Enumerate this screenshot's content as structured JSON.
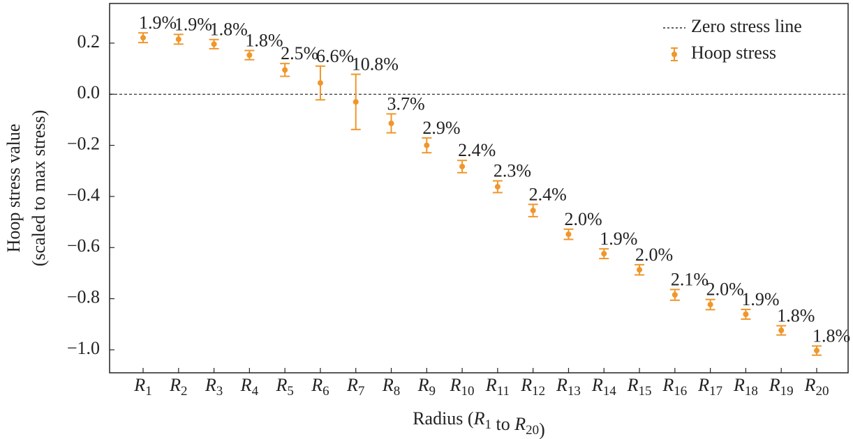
{
  "chart_data": {
    "type": "errorbar",
    "x_label": "Radius (R1 to R20)",
    "y_label": [
      "Hoop stress value",
      "(scaled to max stress)"
    ],
    "categories": [
      "R1",
      "R2",
      "R3",
      "R4",
      "R5",
      "R6",
      "R7",
      "R8",
      "R9",
      "R10",
      "R11",
      "R12",
      "R13",
      "R14",
      "R15",
      "R16",
      "R17",
      "R18",
      "R19",
      "R20"
    ],
    "series": [
      {
        "name": "Hoop stress",
        "color": "#f0962a",
        "values": [
          0.221,
          0.215,
          0.196,
          0.153,
          0.095,
          0.044,
          -0.03,
          -0.114,
          -0.2,
          -0.283,
          -0.362,
          -0.455,
          -0.548,
          -0.624,
          -0.687,
          -0.785,
          -0.823,
          -0.861,
          -0.924,
          -1.003
        ],
        "errors": [
          0.019,
          0.019,
          0.018,
          0.018,
          0.025,
          0.066,
          0.108,
          0.037,
          0.029,
          0.024,
          0.023,
          0.024,
          0.02,
          0.019,
          0.02,
          0.021,
          0.02,
          0.019,
          0.018,
          0.018
        ],
        "annotations": [
          "1.9%",
          "1.9%",
          "1.8%",
          "1.8%",
          "2.5%",
          "6.6%",
          "10.8%",
          "3.7%",
          "2.9%",
          "2.4%",
          "2.3%",
          "2.4%",
          "2.0%",
          "1.9%",
          "2.0%",
          "2.1%",
          "2.0%",
          "1.9%",
          "1.8%",
          "1.8%"
        ]
      }
    ],
    "reference_line": {
      "value": 0,
      "name": "Zero stress line",
      "color": "#000000",
      "style": "dashed"
    },
    "ylim": [
      -1.09,
      0.355
    ],
    "yticks": [
      0.2,
      {
        "value": 0,
        "label": "0.0"
      },
      {
        "value": -0.2,
        "label": "−0.2"
      },
      {
        "value": -0.4,
        "label": "−0.4"
      },
      {
        "value": -0.6,
        "label": "−0.6"
      },
      {
        "value": -0.8,
        "label": "−0.8"
      },
      {
        "value": -1.0,
        "label": "−1.0"
      }
    ],
    "grid": false,
    "legend": "upper right"
  }
}
